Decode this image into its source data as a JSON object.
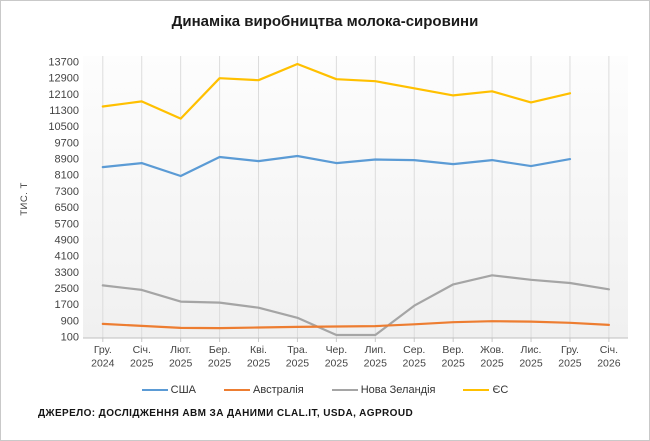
{
  "chart_data": {
    "type": "line",
    "title": "Динаміка виробництва молока-сировини",
    "ylabel": "ТИС. Т",
    "xlabel": "",
    "y_axis": {
      "min": 100,
      "max": 13700,
      "step": 800
    },
    "grid": "vertical",
    "legend_position": "bottom",
    "categories": [
      {
        "month": "Гру.",
        "year": "2024"
      },
      {
        "month": "Січ.",
        "year": "2025"
      },
      {
        "month": "Лют.",
        "year": "2025"
      },
      {
        "month": "Бер.",
        "year": "2025"
      },
      {
        "month": "Кві.",
        "year": "2025"
      },
      {
        "month": "Тра.",
        "year": "2025"
      },
      {
        "month": "Чер.",
        "year": "2025"
      },
      {
        "month": "Лип.",
        "year": "2025"
      },
      {
        "month": "Сер.",
        "year": "2025"
      },
      {
        "month": "Вер.",
        "year": "2025"
      },
      {
        "month": "Жов.",
        "year": "2025"
      },
      {
        "month": "Лис.",
        "year": "2025"
      },
      {
        "month": "Гру.",
        "year": "2025"
      },
      {
        "month": "Січ.",
        "year": "2026"
      }
    ],
    "series": [
      {
        "name": "США",
        "color": "#5B9BD5",
        "values": [
          8500,
          8700,
          8060,
          9000,
          8800,
          9050,
          8700,
          8880,
          8850,
          8650,
          8850,
          8550,
          8900,
          null
        ]
      },
      {
        "name": "Австралія",
        "color": "#ED7D31",
        "values": [
          750,
          650,
          550,
          540,
          570,
          600,
          620,
          640,
          730,
          830,
          880,
          860,
          800,
          700
        ]
      },
      {
        "name": "Нова Зеландія",
        "color": "#A5A5A5",
        "values": [
          2650,
          2430,
          1850,
          1800,
          1550,
          1050,
          200,
          200,
          1650,
          2700,
          3150,
          2930,
          2770,
          2460
        ]
      },
      {
        "name": "ЄС",
        "color": "#FFC000",
        "values": [
          11500,
          11750,
          10900,
          12900,
          12800,
          13600,
          12850,
          12750,
          12400,
          12050,
          12250,
          11700,
          12150,
          null
        ]
      }
    ],
    "draw_order": [
      0,
      2,
      1,
      3
    ]
  },
  "footer": {
    "source_text": "ДЖЕРЕЛО: ДОСЛІДЖЕННЯ АВМ ЗА ДАНИМИ CLAL.IT, USDA, AGPROUD"
  }
}
